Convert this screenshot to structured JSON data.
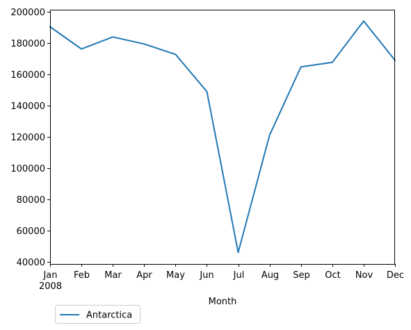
{
  "chart_data": {
    "type": "line",
    "x": [
      "Jan",
      "Feb",
      "Mar",
      "Apr",
      "May",
      "Jun",
      "Jul",
      "Aug",
      "Sep",
      "Oct",
      "Nov",
      "Dec"
    ],
    "x_tick_labels": [
      "Jan\n2008",
      "Feb",
      "Mar",
      "Apr",
      "May",
      "Jun",
      "Jul",
      "Aug",
      "Sep",
      "Oct",
      "Nov",
      "Dec"
    ],
    "series": [
      {
        "name": "Antarctica",
        "color": "#1f77b4",
        "values": [
          190500,
          176300,
          184000,
          179500,
          172800,
          149000,
          45900,
          121000,
          164800,
          167700,
          194200,
          169100
        ]
      }
    ],
    "xlabel": "Month",
    "ylabel": "",
    "ylim": [
      38500,
      201000
    ],
    "y_ticks": [
      40000,
      60000,
      80000,
      100000,
      120000,
      140000,
      160000,
      180000,
      200000
    ],
    "grid": false,
    "legend_position": "below-left"
  }
}
